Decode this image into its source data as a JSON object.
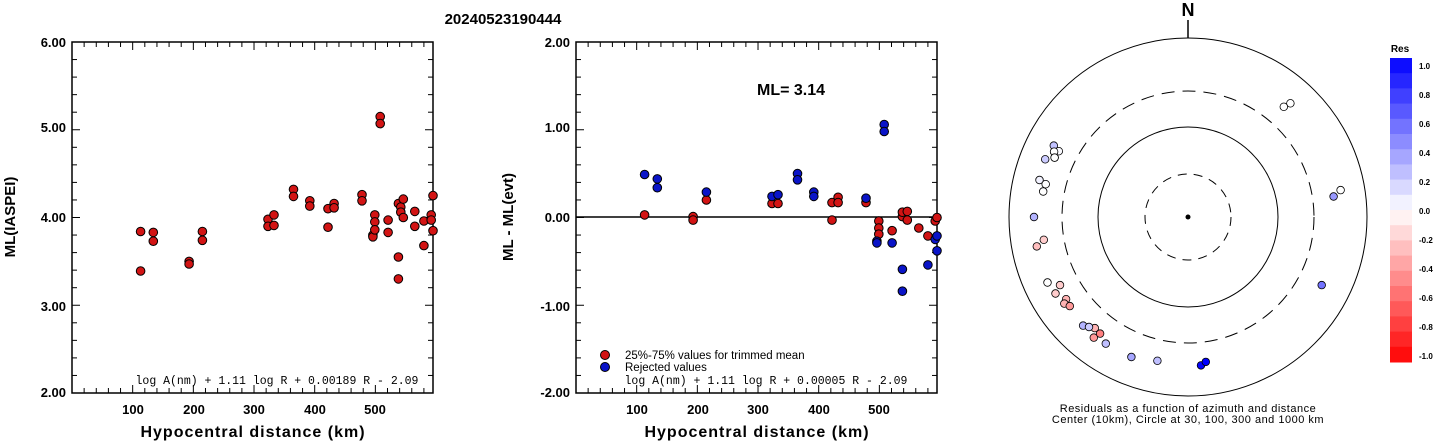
{
  "title": "20240523190444",
  "colors": {
    "accepted": "#d21414",
    "rejected": "#0a14c8",
    "edge": "#000000"
  },
  "chart_data": [
    {
      "type": "scatter",
      "ylabel": "ML(IASPEI)",
      "xlabel": "Hypocentral distance (km)",
      "xlim": [
        0,
        595
      ],
      "ylim": [
        2.0,
        6.0
      ],
      "xticks": [
        "100",
        "200",
        "300",
        "400",
        "500"
      ],
      "yticks": [
        "2.00",
        "3.00",
        "4.00",
        "5.00",
        "6.00"
      ],
      "formula": "log A(nm) + 1.11 log R + 0.00189 R - 2.09",
      "series": [
        {
          "kind": "accepted",
          "points": [
            [
              113,
              3.84
            ],
            [
              113,
              3.39
            ],
            [
              134,
              3.83
            ],
            [
              134,
              3.73
            ],
            [
              193,
              3.5
            ],
            [
              193,
              3.47
            ],
            [
              215,
              3.84
            ],
            [
              215,
              3.74
            ],
            [
              323,
              3.98
            ],
            [
              323,
              3.9
            ],
            [
              333,
              4.03
            ],
            [
              333,
              3.91
            ],
            [
              365,
              4.32
            ],
            [
              365,
              4.24
            ],
            [
              392,
              4.19
            ],
            [
              392,
              4.13
            ],
            [
              422,
              4.1
            ],
            [
              422,
              3.89
            ],
            [
              432,
              4.16
            ],
            [
              432,
              4.11
            ],
            [
              478,
              4.26
            ],
            [
              478,
              4.19
            ],
            [
              496,
              3.8
            ],
            [
              496,
              3.78
            ],
            [
              499,
              4.03
            ],
            [
              499,
              3.95
            ],
            [
              499,
              3.86
            ],
            [
              508,
              5.15
            ],
            [
              508,
              5.07
            ],
            [
              521,
              3.97
            ],
            [
              521,
              3.83
            ],
            [
              538,
              3.55
            ],
            [
              538,
              3.3
            ],
            [
              538,
              4.16
            ],
            [
              542,
              4.12
            ],
            [
              542,
              4.06
            ],
            [
              546,
              4.21
            ],
            [
              546,
              4.0
            ],
            [
              565,
              4.07
            ],
            [
              565,
              3.9
            ],
            [
              580,
              3.96
            ],
            [
              580,
              3.68
            ],
            [
              592,
              4.03
            ],
            [
              592,
              3.97
            ],
            [
              595,
              4.25
            ],
            [
              595,
              3.85
            ]
          ]
        }
      ]
    },
    {
      "type": "scatter",
      "ylabel": "ML - ML(evt)",
      "xlabel": "Hypocentral distance (km)",
      "xlim": [
        0,
        595
      ],
      "ylim": [
        -2.0,
        2.0
      ],
      "xticks": [
        "100",
        "200",
        "300",
        "400",
        "500"
      ],
      "yticks": [
        "-2.00",
        "-1.00",
        "0.00",
        "1.00",
        "2.00"
      ],
      "annotation": "ML= 3.14",
      "legend": [
        "25%-75% values for trimmed mean",
        "Rejected values"
      ],
      "formula": "log A(nm) + 1.11 log R + 0.00005 R - 2.09",
      "series": [
        {
          "kind": "accepted",
          "points": [
            [
              113,
              0.03
            ],
            [
              193,
              0.01
            ],
            [
              193,
              -0.03
            ],
            [
              215,
              0.2
            ],
            [
              323,
              0.16
            ],
            [
              333,
              0.16
            ],
            [
              422,
              0.17
            ],
            [
              422,
              -0.03
            ],
            [
              432,
              0.23
            ],
            [
              432,
              0.17
            ],
            [
              478,
              0.17
            ],
            [
              499,
              -0.04
            ],
            [
              499,
              -0.12
            ],
            [
              499,
              -0.19
            ],
            [
              521,
              -0.15
            ],
            [
              538,
              0.01
            ],
            [
              538,
              0.06
            ],
            [
              546,
              0.07
            ],
            [
              546,
              -0.03
            ],
            [
              565,
              -0.12
            ],
            [
              580,
              -0.21
            ],
            [
              592,
              -0.04
            ],
            [
              595,
              0.0
            ]
          ]
        },
        {
          "kind": "rejected",
          "points": [
            [
              113,
              0.49
            ],
            [
              134,
              0.44
            ],
            [
              134,
              0.34
            ],
            [
              215,
              0.29
            ],
            [
              323,
              0.24
            ],
            [
              333,
              0.26
            ],
            [
              365,
              0.5
            ],
            [
              365,
              0.43
            ],
            [
              392,
              0.29
            ],
            [
              392,
              0.24
            ],
            [
              478,
              0.22
            ],
            [
              496,
              -0.27
            ],
            [
              496,
              -0.29
            ],
            [
              508,
              1.06
            ],
            [
              508,
              0.98
            ],
            [
              521,
              -0.29
            ],
            [
              538,
              -0.59
            ],
            [
              538,
              -0.84
            ],
            [
              580,
              -0.54
            ],
            [
              592,
              -0.25
            ],
            [
              595,
              -0.38
            ],
            [
              595,
              -0.21
            ]
          ]
        }
      ]
    },
    {
      "type": "polar-scatter",
      "north_label": "N",
      "caption": [
        "Residuals as a function of azimuth and distance",
        "Center (10km), Circle at 30, 100, 300 and 1000 km"
      ],
      "colorbar": {
        "title": "Res",
        "min": -1.0,
        "max": 1.0,
        "ticks": [
          "1.0",
          "0.8",
          "0.6",
          "0.4",
          "0.2",
          "0.0",
          "-0.2",
          "-0.4",
          "-0.6",
          "-0.8",
          "-1.0"
        ]
      },
      "points": [
        {
          "az": 292,
          "res": 0.2
        },
        {
          "az": 294,
          "res": 0.28
        },
        {
          "az": 296,
          "res": 0.3
        },
        {
          "az": 298,
          "res": 0.24
        },
        {
          "az": 297,
          "res": 0.02
        },
        {
          "az": 296,
          "res": 0.0
        },
        {
          "az": 294,
          "res": 0.0
        },
        {
          "az": 284,
          "res": 0.05
        },
        {
          "az": 283,
          "res": 0.0
        },
        {
          "az": 280,
          "res": 0.0
        },
        {
          "az": 270,
          "res": 0.3
        },
        {
          "az": 261,
          "res": -0.2
        },
        {
          "az": 259,
          "res": -0.25
        },
        {
          "az": 245,
          "res": 0.0
        },
        {
          "az": 242,
          "res": -0.2
        },
        {
          "az": 240,
          "res": -0.2
        },
        {
          "az": 236,
          "res": -0.3
        },
        {
          "az": 235,
          "res": -0.3
        },
        {
          "az": 233,
          "res": -0.4
        },
        {
          "az": 220,
          "res": -0.3
        },
        {
          "az": 218,
          "res": -0.4
        },
        {
          "az": 217,
          "res": -0.5
        },
        {
          "az": 224,
          "res": 0.3
        },
        {
          "az": 222,
          "res": 0.2
        },
        {
          "az": 213,
          "res": 0.25
        },
        {
          "az": 202,
          "res": 0.35
        },
        {
          "az": 192,
          "res": 0.25
        },
        {
          "az": 175,
          "res": 0.98
        },
        {
          "az": 173,
          "res": 1.0
        },
        {
          "az": 117,
          "res": 0.55
        },
        {
          "az": 82,
          "res": 0.4
        },
        {
          "az": 80,
          "res": 0.0
        },
        {
          "az": 42,
          "res": 0.0
        },
        {
          "az": 41,
          "res": 0.0
        }
      ]
    }
  ]
}
